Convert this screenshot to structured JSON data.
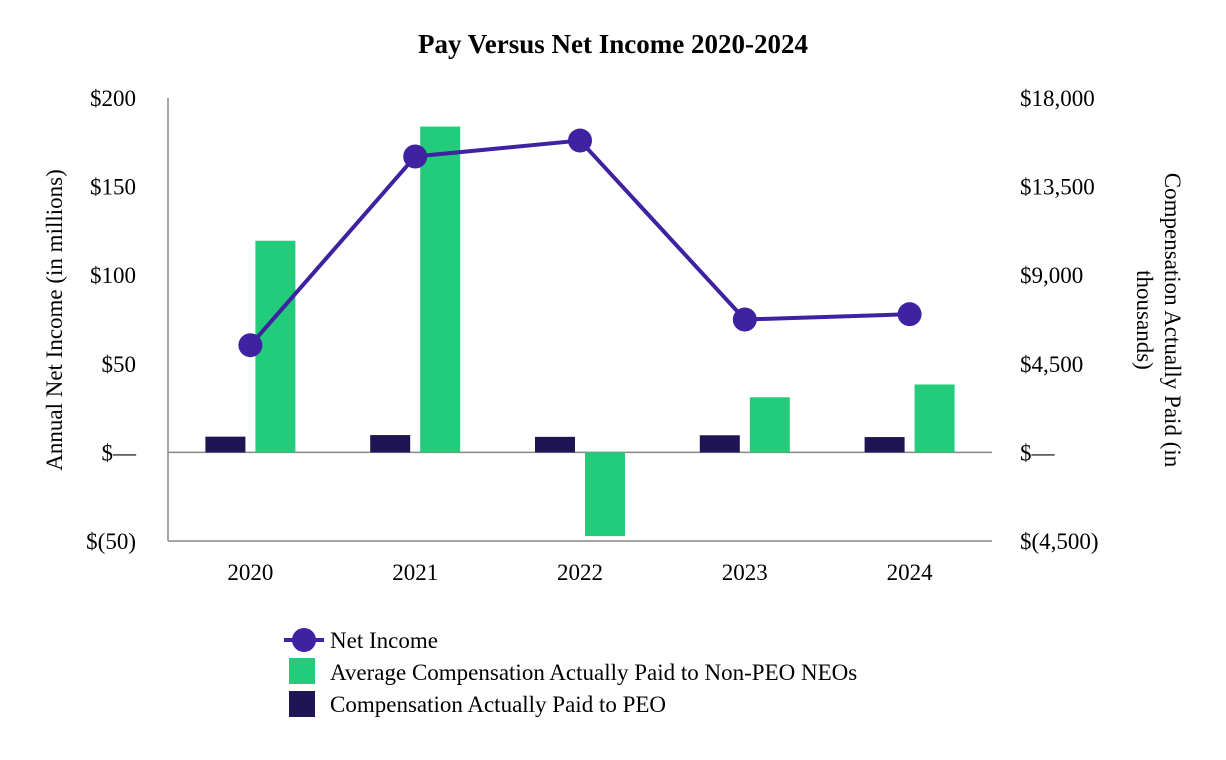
{
  "colors": {
    "net_income": "#3F22A1",
    "non_peo": "#22CC7B",
    "peo": "#1F1555",
    "axis": "#888888"
  },
  "chart_data": {
    "type": "bar",
    "title": "Pay Versus Net Income 2020-2024",
    "categories": [
      "2020",
      "2021",
      "2022",
      "2023",
      "2024"
    ],
    "left_axis": {
      "label": "Annual Net Income (in millions)",
      "ylim": [
        -50,
        200
      ],
      "ticks": [
        200,
        150,
        100,
        50,
        0,
        -50
      ],
      "tick_labels": [
        "$200",
        "$150",
        "$100",
        "$50",
        "$—",
        "$(50)"
      ]
    },
    "right_axis": {
      "label_lines": [
        "Compensation Actually Paid (in",
        "thousands)"
      ],
      "ylim": [
        -4500,
        18000
      ],
      "ticks": [
        18000,
        13500,
        9000,
        4500,
        0,
        -4500
      ],
      "tick_labels": [
        "$18,000",
        "$13,500",
        "$9,000",
        "$4,500",
        "$—",
        "$(4,500)"
      ]
    },
    "series": [
      {
        "name": "Compensation Actually Paid to PEO",
        "type": "bar",
        "axis": "right",
        "values": [
          800,
          880,
          790,
          870,
          780
        ]
      },
      {
        "name": "Average Compensation Actually Paid to Non-PEO NEOs",
        "type": "bar",
        "axis": "right",
        "values": [
          10750,
          16550,
          -4250,
          2800,
          3450
        ]
      },
      {
        "name": "Net Income",
        "type": "line",
        "axis": "left",
        "values": [
          60.5,
          167,
          176,
          75,
          78
        ]
      }
    ],
    "legend": {
      "position": "bottom-center",
      "entries": [
        "Net Income",
        "Average Compensation Actually Paid to Non-PEO NEOs",
        "Compensation Actually Paid to PEO"
      ]
    }
  }
}
